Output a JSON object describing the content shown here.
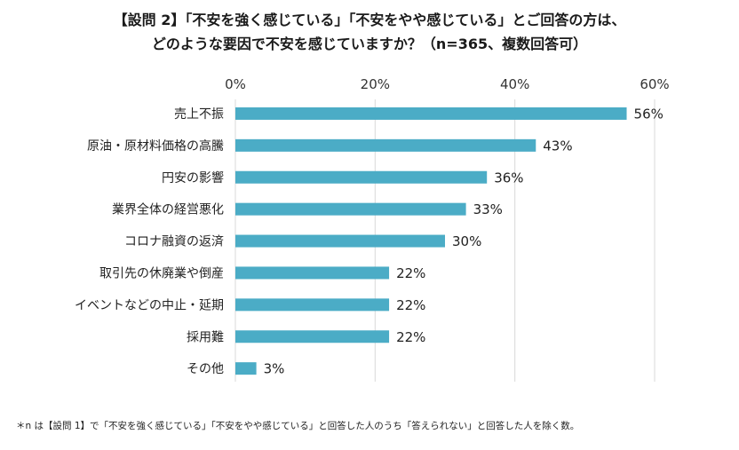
{
  "title_line1": "【設問 2】「不安を強く感じている」「不安をやや感じている」とご回答の方は、",
  "title_line2": "どのような要因で不安を感じていますか？（n=365、複数回答可）",
  "footnote": "＊n は【設問 1】で「不安を強く感じている」「不安をやや感じている」と回答した人のうち「答えられない」と回答した人を除く数。",
  "colors": {
    "bar": "#4bacc6",
    "grid": "#d9d9d9"
  },
  "chart_data": {
    "type": "bar",
    "orientation": "horizontal",
    "title": "【設問 2】「不安を強く感じている」「不安をやや感じている」とご回答の方は、どのような要因で不安を感じていますか？（n=365、複数回答可）",
    "categories": [
      "売上不振",
      "原油・原材料価格の高騰",
      "円安の影響",
      "業界全体の経営悪化",
      "コロナ融資の返済",
      "取引先の休廃業や倒産",
      "イベントなどの中止・延期",
      "採用難",
      "その他"
    ],
    "values": [
      56,
      43,
      36,
      33,
      30,
      22,
      22,
      22,
      3
    ],
    "value_labels": [
      "56%",
      "43%",
      "36%",
      "33%",
      "30%",
      "22%",
      "22%",
      "22%",
      "3%"
    ],
    "xlim": [
      0,
      60
    ],
    "ticks": [
      0,
      20,
      40,
      60
    ],
    "tick_labels": [
      "0%",
      "20%",
      "40%",
      "60%"
    ],
    "xlabel": "",
    "ylabel": "",
    "grid": true,
    "axis_position": "top"
  }
}
